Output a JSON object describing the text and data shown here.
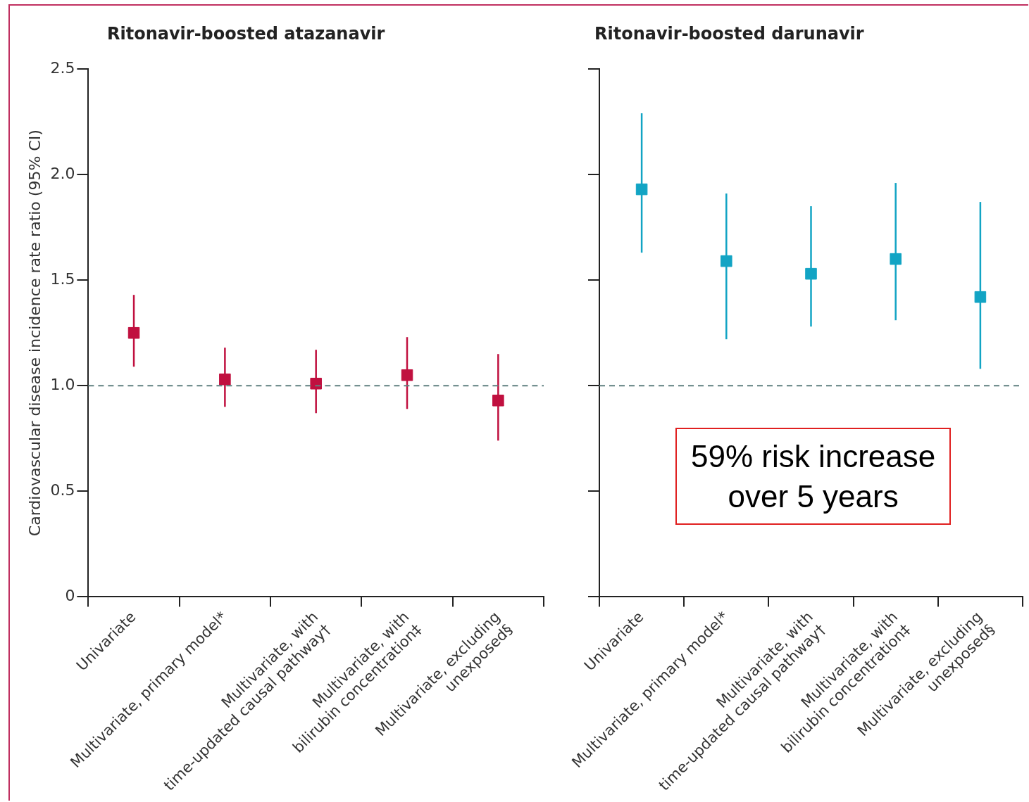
{
  "chart_data": [
    {
      "type": "scatter",
      "title": "Ritonavir-boosted atazanavir",
      "ylabel": "Cardiovascular disease incidence rate ratio (95% CI)",
      "categories": [
        "Univariate",
        "Multivariate, primary model*",
        "Multivariate, with\ntime-updated causal pathway†",
        "Multivariate, with\nbilirubin concentration‡",
        "Multivariate, excluding\nunexposed§"
      ],
      "marker": "square",
      "series": [
        {
          "color": "#c0103f",
          "values": [
            1.25,
            1.03,
            1.01,
            1.05,
            0.93
          ],
          "errors": [
            [
              1.09,
              1.43
            ],
            [
              0.9,
              1.18
            ],
            [
              0.87,
              1.17
            ],
            [
              0.89,
              1.23
            ],
            [
              0.74,
              1.15
            ]
          ]
        }
      ],
      "ylim": [
        0,
        2.5
      ],
      "yticks": [
        0,
        0.5,
        {
          "value": 1,
          "label": "1.0"
        },
        1.5,
        {
          "value": 2,
          "label": "2.0"
        },
        2.5
      ],
      "ref_lines": [
        {
          "axis": "y",
          "value": 1,
          "color": "#5f7f7f",
          "line_style": "dashed"
        }
      ]
    },
    {
      "type": "scatter",
      "title": "Ritonavir-boosted darunavir",
      "categories": [
        "Univariate",
        "Multivariate, primary model*",
        "Multivariate, with\ntime-updated causal pathway†",
        "Multivariate, with\nbilirubin concentration‡",
        "Multivariate, excluding\nunexposed§"
      ],
      "marker": "square",
      "series": [
        {
          "color": "#12a4c4",
          "values": [
            1.93,
            1.59,
            1.53,
            1.6,
            1.42
          ],
          "errors": [
            [
              1.63,
              2.29
            ],
            [
              1.22,
              1.91
            ],
            [
              1.28,
              1.85
            ],
            [
              1.31,
              1.96
            ],
            [
              1.08,
              1.87
            ]
          ]
        }
      ],
      "ylim": [
        0,
        2.5
      ],
      "yticks": [
        {
          "value": 0,
          "label": null
        },
        {
          "value": 0.5,
          "label": null
        },
        {
          "value": 1,
          "label": null
        },
        {
          "value": 1.5,
          "label": null
        },
        {
          "value": 2,
          "label": null
        },
        {
          "value": 2.5,
          "label": null
        }
      ],
      "tick_labels": "x",
      "ref_lines": [
        {
          "axis": "y",
          "value": 1,
          "color": "#5f7f7f",
          "line_style": "dashed"
        }
      ],
      "annotations": [
        "59% risk increase\nover 5 years"
      ]
    }
  ]
}
